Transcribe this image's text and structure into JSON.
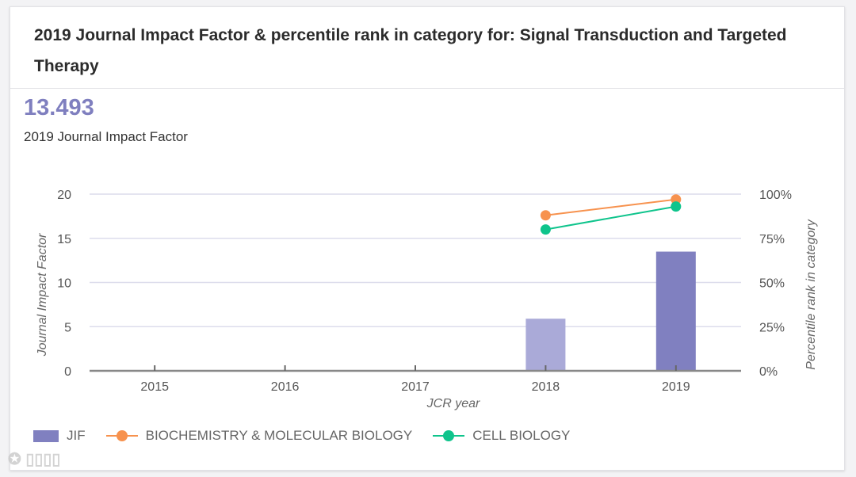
{
  "header": {
    "title": "2019 Journal Impact Factor & percentile rank in category for: Signal Transduction and Targeted Therapy"
  },
  "summary": {
    "value": "13.493",
    "label": "2019 Journal Impact Factor"
  },
  "watermark": "大数跨境",
  "chart_data": {
    "type": "bar",
    "title": "2019 Journal Impact Factor & percentile rank in category for: Signal Transduction and Targeted Therapy",
    "xlabel": "JCR year",
    "ylabel": "Journal Impact Factor",
    "y2label": "Percentile rank in category",
    "categories": [
      "2015",
      "2016",
      "2017",
      "2018",
      "2019"
    ],
    "ylim": [
      0,
      20
    ],
    "yticks": [
      "0",
      "5",
      "10",
      "15",
      "20"
    ],
    "y2lim": [
      0,
      100
    ],
    "y2ticks": [
      "0%",
      "25%",
      "50%",
      "75%",
      "100%"
    ],
    "grid": true,
    "legend": "bottom-left",
    "series": [
      {
        "name": "JIF",
        "type": "bar",
        "color": "#8080c0",
        "highlight_color": "#aaaad8",
        "values": [
          null,
          null,
          null,
          5.9,
          13.493
        ]
      },
      {
        "name": "BIOCHEMISTRY & MOLECULAR BIOLOGY",
        "type": "line",
        "axis": "right",
        "color": "#f7924e",
        "values": [
          null,
          null,
          null,
          88,
          97
        ]
      },
      {
        "name": "CELL BIOLOGY",
        "type": "line",
        "axis": "right",
        "color": "#0fc48c",
        "values": [
          null,
          null,
          null,
          80,
          93
        ]
      }
    ]
  }
}
